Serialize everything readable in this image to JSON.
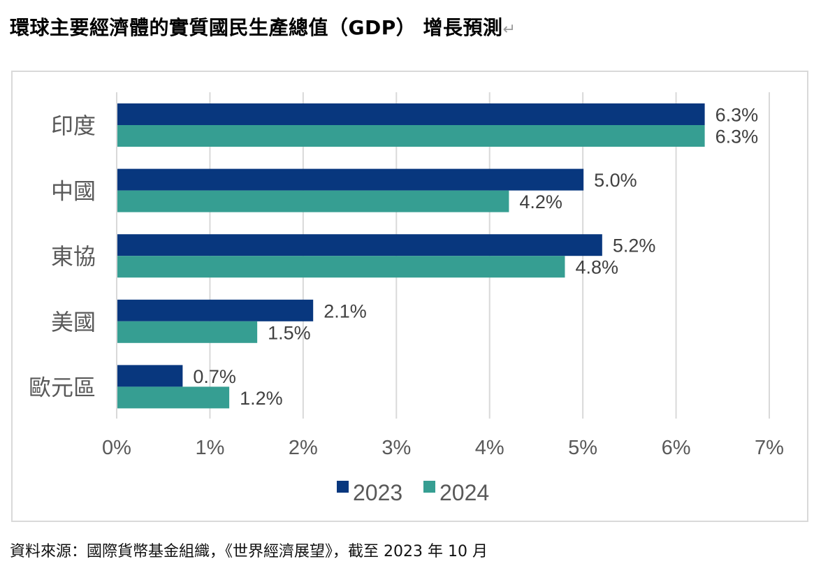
{
  "title": "環球主要經濟體的實質國民生產總值（GDP） 增長預測",
  "title_return_mark": "↵",
  "source": "資料來源：國際貨幣基金組織，《世界經濟展望》，截至 2023 年 10 月",
  "colors": {
    "series_2023": "#08377E",
    "series_2024": "#369E92",
    "grid": "#d9d9d9",
    "text": "#595959"
  },
  "chart_data": {
    "type": "bar",
    "orientation": "horizontal",
    "title": "環球主要經濟體的實質國民生產總值（GDP） 增長預測",
    "categories": [
      "印度",
      "中國",
      "東協",
      "美國",
      "歐元區"
    ],
    "series": [
      {
        "name": "2023",
        "values": [
          6.3,
          5.0,
          5.2,
          2.1,
          0.7
        ],
        "labels": [
          "6.3%",
          "5.0%",
          "5.2%",
          "2.1%",
          "0.7%"
        ]
      },
      {
        "name": "2024",
        "values": [
          6.3,
          4.2,
          4.8,
          1.5,
          1.2
        ],
        "labels": [
          "6.3%",
          "4.2%",
          "4.8%",
          "1.5%",
          "1.2%"
        ]
      }
    ],
    "xlabel": "",
    "ylabel": "",
    "xlim": [
      0,
      7
    ],
    "xticks": [
      0,
      1,
      2,
      3,
      4,
      5,
      6,
      7
    ],
    "xtick_labels": [
      "0%",
      "1%",
      "2%",
      "3%",
      "4%",
      "5%",
      "6%",
      "7%"
    ],
    "grid": "vertical",
    "legend": {
      "position": "bottom",
      "entries": [
        "2023",
        "2024"
      ]
    }
  }
}
